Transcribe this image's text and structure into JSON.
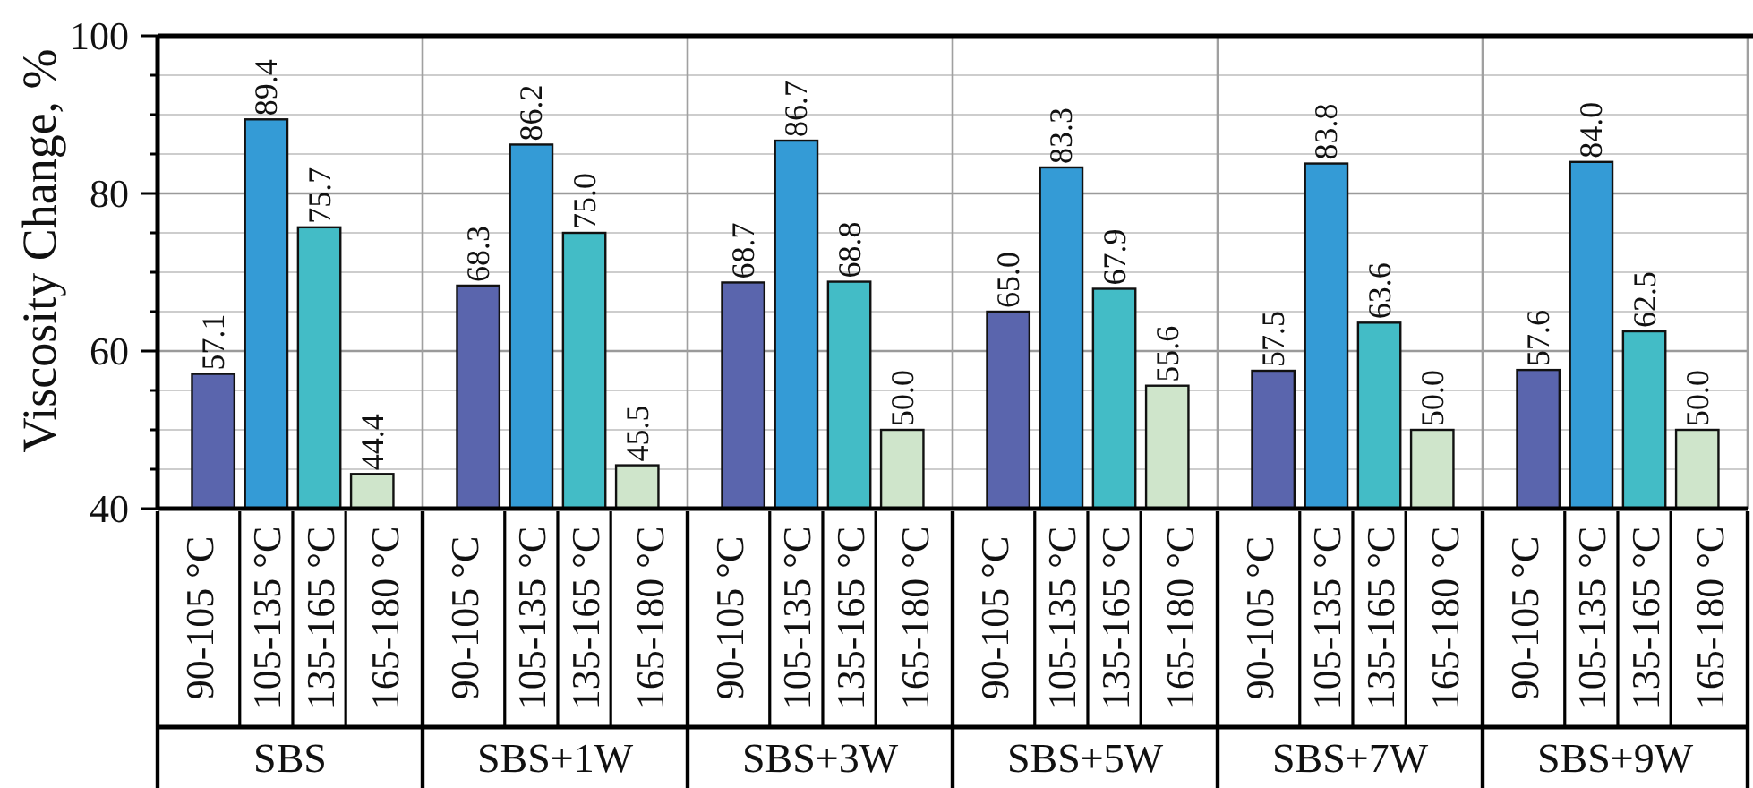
{
  "chart_data": {
    "type": "bar",
    "ylabel": "Viscosity Change, %",
    "categories": [
      "SBS",
      "SBS+1W",
      "SBS+3W",
      "SBS+5W",
      "SBS+7W",
      "SBS+9W"
    ],
    "series": [
      {
        "name": "90-105 °C",
        "color": "#5a65ad",
        "values": [
          57.1,
          68.3,
          68.7,
          65.0,
          57.5,
          57.6
        ],
        "value_labels": [
          "57.1",
          "68.3",
          "68.7",
          "65.0",
          "57.5",
          "57.6"
        ]
      },
      {
        "name": "105-135 °C",
        "color": "#349bd6",
        "values": [
          89.4,
          86.2,
          86.7,
          83.3,
          83.8,
          84.0
        ],
        "value_labels": [
          "89.4",
          "86.2",
          "86.7",
          "83.3",
          "83.8",
          "84.0"
        ]
      },
      {
        "name": "135-165 °C",
        "color": "#43bcc6",
        "values": [
          75.7,
          75.0,
          68.8,
          67.9,
          63.6,
          62.5
        ],
        "value_labels": [
          "75.7",
          "75.0",
          "68.8",
          "67.9",
          "63.6",
          "62.5"
        ]
      },
      {
        "name": "165-180 °C",
        "color": "#cfe5cb",
        "values": [
          44.4,
          45.5,
          50.0,
          55.6,
          50.0,
          50.0
        ],
        "value_labels": [
          "44.4",
          "45.5",
          "50.0",
          "55.6",
          "50.0",
          "50.0"
        ]
      }
    ],
    "ylim": [
      40,
      100
    ],
    "yticks": [
      40,
      {
        "value": 45,
        "label": null
      },
      {
        "value": 50,
        "label": null
      },
      {
        "value": 55,
        "label": null
      },
      60,
      {
        "value": 65,
        "label": null
      },
      {
        "value": 70,
        "label": null
      },
      {
        "value": 75,
        "label": null
      },
      80,
      {
        "value": 85,
        "label": null
      },
      {
        "value": 90,
        "label": null
      },
      {
        "value": 95,
        "label": null
      },
      100
    ],
    "grid": "y"
  }
}
